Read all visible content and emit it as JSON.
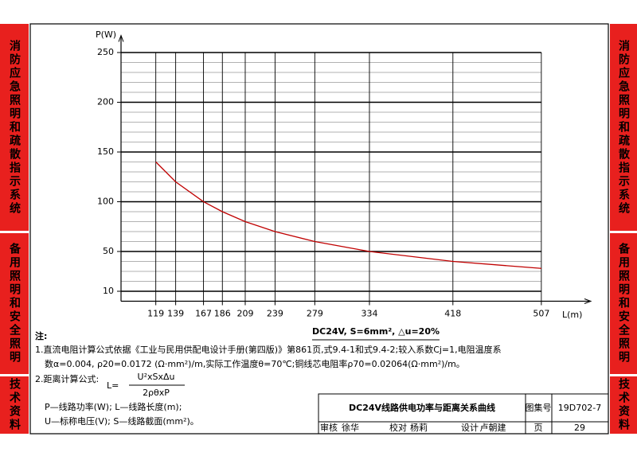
{
  "chart_data": {
    "type": "line",
    "title": "DC24V, S=6mm², △u=20%",
    "y_label": "P(W)",
    "x_label": "L(m)",
    "x": [
      119,
      139,
      167,
      186,
      209,
      239,
      279,
      334,
      418,
      507
    ],
    "series": [
      {
        "name": "P",
        "color": "#c00000",
        "values": [
          140,
          120,
          100,
          90,
          80,
          70,
          60,
          50,
          40,
          33
        ]
      }
    ],
    "xlim": [
      80,
      560
    ],
    "xticks": [
      119,
      139,
      167,
      186,
      209,
      239,
      279,
      334,
      418,
      507
    ],
    "ylim": [
      0,
      260
    ],
    "yticks": [
      10,
      50,
      100,
      150,
      200,
      250
    ],
    "grid": true,
    "minor_grid": 10
  },
  "notes": {
    "heading": "注:",
    "line1": "1.直流电阻计算公式依据《工业与民用供配电设计手册(第四版)》第861页,式9.4-1和式9.4-2;较入系数Cj=1,电阻温度系",
    "line2": "数α=0.004, ρ20=0.0172 (Ω·mm²)/m,实际工作温度θ=70℃;铜线芯电阻率ρ70=0.02064(Ω·mm²)/m。",
    "line3": "2.距离计算公式:",
    "formula_lhs": "L=",
    "formula_num": "U²xSxΔu",
    "formula_den": "2ρθxP",
    "line4": "P—线路功率(W);   L—线路长度(m);",
    "line5": "U—标称电压(V);   S—线路截面(mm²)。"
  },
  "title_block": {
    "title": "DC24V线路供电功率与距离关系曲线",
    "atlas_label": "图集号",
    "atlas_no": "19D702-7",
    "review": "审核",
    "reviewer": "徐华",
    "check": "校对",
    "checker": "杨莉",
    "design": "设计",
    "designer": "卢朝建",
    "page_label": "页",
    "page": "29"
  },
  "side_tabs": {
    "left": [
      "消防应急照明和疏散指示系统",
      "备用照明和安全照明",
      "技术资料"
    ],
    "right": [
      "消防应急照明和疏散指示系统",
      "备用照明和安全照明",
      "技术资料"
    ]
  }
}
